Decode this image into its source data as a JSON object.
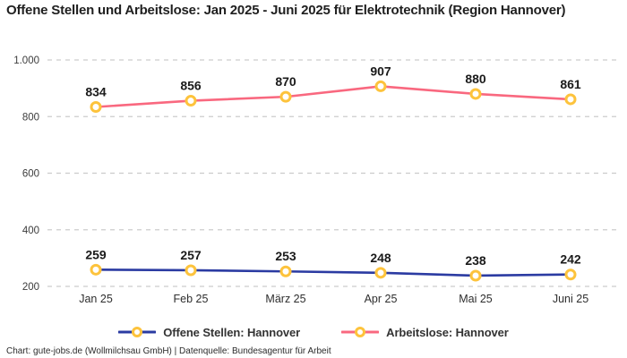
{
  "title": "Offene Stellen und Arbeitslose: Jan 2025 - Juni 2025 für Elektrotechnik (Region Hannover)",
  "footer": "Chart: gute-jobs.de (Wollmilchsau GmbH) | Datenquelle: Bundesagentur für Arbeit",
  "colors": {
    "offene_stellen_line": "#2b3ba2",
    "arbeitslose_line": "#f9687f",
    "marker_stroke": "#fdc33c",
    "marker_fill": "#ffffff",
    "gridline": "#cccccc",
    "title_text": "#1f1f1f",
    "axis_text": "#3c3c3c",
    "x_axis_text": "#2e2e2e",
    "data_label_text": "#1a1a1a"
  },
  "chart_data": {
    "type": "line",
    "title": "Offene Stellen und Arbeitslose: Jan 2025 - Juni 2025 für Elektrotechnik (Region Hannover)",
    "categories": [
      "Jan 25",
      "Feb 25",
      "März 25",
      "Apr 25",
      "Mai 25",
      "Juni 25"
    ],
    "series": [
      {
        "name": "Offene Stellen: Hannover",
        "values": [
          259,
          257,
          253,
          248,
          238,
          242
        ],
        "color": "#2b3ba2"
      },
      {
        "name": "Arbeitslose: Hannover",
        "values": [
          834,
          856,
          870,
          907,
          880,
          861
        ],
        "color": "#f9687f"
      }
    ],
    "y_ticks": [
      200,
      400,
      600,
      800,
      1000
    ],
    "y_tick_labels": [
      "200",
      "400",
      "600",
      "800",
      "1.000"
    ],
    "ylim": [
      200,
      1050
    ],
    "xlabel": "",
    "ylabel": "",
    "grid": "horizontal-dashed",
    "legend_position": "bottom",
    "data_labels": true,
    "marker_style": "circle-white-fill-yellow-ring"
  }
}
